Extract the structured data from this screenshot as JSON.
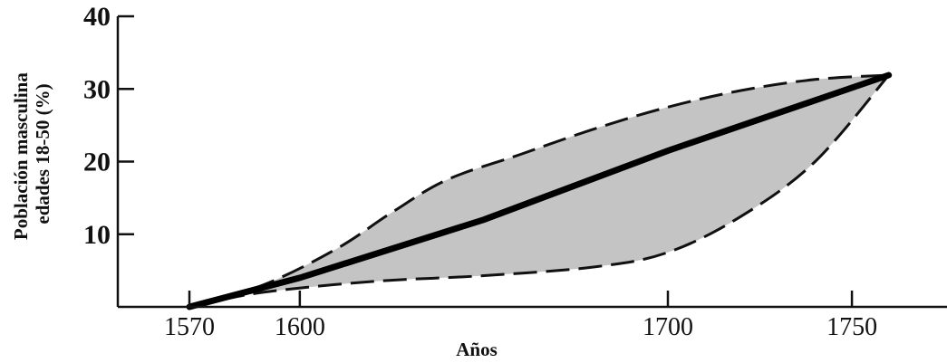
{
  "chart_data": {
    "type": "area",
    "xlabel": "Años",
    "ylabel_lines": [
      "Población masculina",
      "edades 18-50 (%)"
    ],
    "x_ticks": [
      1570,
      1600,
      1700,
      1750
    ],
    "y_ticks": [
      10,
      20,
      30,
      40
    ],
    "xlim": [
      1540,
      1820
    ],
    "ylim": [
      0,
      40
    ],
    "grid": false,
    "colors": {
      "band_fill": "#c4c4c4",
      "line": "#000000",
      "axis": "#111111"
    },
    "band": {
      "upper": [
        [
          1570,
          0
        ],
        [
          1590,
          3
        ],
        [
          1610,
          8
        ],
        [
          1625,
          13
        ],
        [
          1640,
          17.5
        ],
        [
          1660,
          21
        ],
        [
          1680,
          24.5
        ],
        [
          1700,
          27.5
        ],
        [
          1720,
          29.8
        ],
        [
          1740,
          31.3
        ],
        [
          1760,
          31.9
        ]
      ],
      "lower": [
        [
          1570,
          0
        ],
        [
          1590,
          2
        ],
        [
          1620,
          3.5
        ],
        [
          1650,
          4.3
        ],
        [
          1680,
          5.5
        ],
        [
          1700,
          7.5
        ],
        [
          1720,
          12.5
        ],
        [
          1740,
          20
        ],
        [
          1760,
          31.9
        ]
      ]
    },
    "series": [
      {
        "values": [
          [
            1570,
            0
          ],
          [
            1600,
            4
          ],
          [
            1650,
            12
          ],
          [
            1700,
            21.5
          ],
          [
            1760,
            31.9
          ]
        ]
      }
    ]
  }
}
